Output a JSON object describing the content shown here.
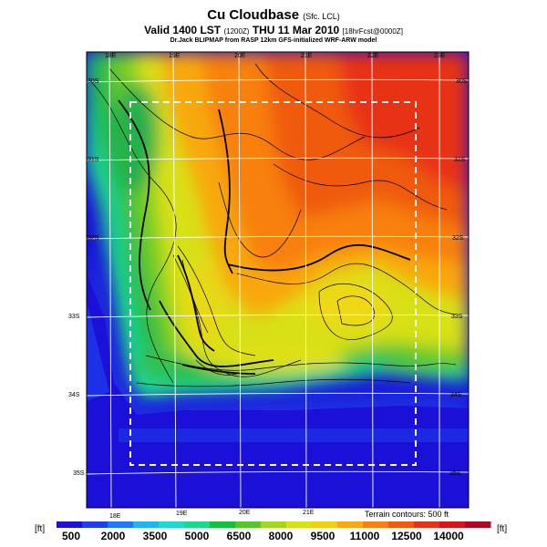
{
  "header": {
    "title": "Cu Cloudbase",
    "title_sub": "(Sfc. LCL)",
    "valid_main": "Valid 1400 LST",
    "valid_paren": "(1200Z)",
    "valid_date": "THU 11 Mar 2010",
    "valid_tail": "[18hrFcst@0000Z]",
    "credit": "Dr.Jack BLIPMAP from RASP 12km GFS-initialized WRF-ARW model"
  },
  "map": {
    "lon_labels_top": [
      "18E",
      "19E",
      "20E",
      "21E",
      "22E",
      "23E"
    ],
    "lon_labels_bottom": [
      "18E",
      "19E",
      "20E",
      "21E"
    ],
    "lat_labels_right": [
      "30S",
      "31S",
      "32S",
      "33S",
      "34S",
      "35S"
    ],
    "lat_labels_left": [
      "30S",
      "31S",
      "32S",
      "33S",
      "34S",
      "35S"
    ],
    "terrain_note": "Terrain contours: 500 ft"
  },
  "colorbar": {
    "unit": "[ft]",
    "labels": [
      "500",
      "2000",
      "3500",
      "5000",
      "6500",
      "8000",
      "9500",
      "11000",
      "12500",
      "14000"
    ],
    "colors": [
      "#1a10d8",
      "#1e3ff0",
      "#1f78f5",
      "#20b4f0",
      "#1fd8d0",
      "#1cd88c",
      "#12c040",
      "#54c828",
      "#a0d820",
      "#d8e018",
      "#f0d012",
      "#f8a810",
      "#f88010",
      "#f05a10",
      "#e83018",
      "#d81418",
      "#b00820"
    ]
  }
}
